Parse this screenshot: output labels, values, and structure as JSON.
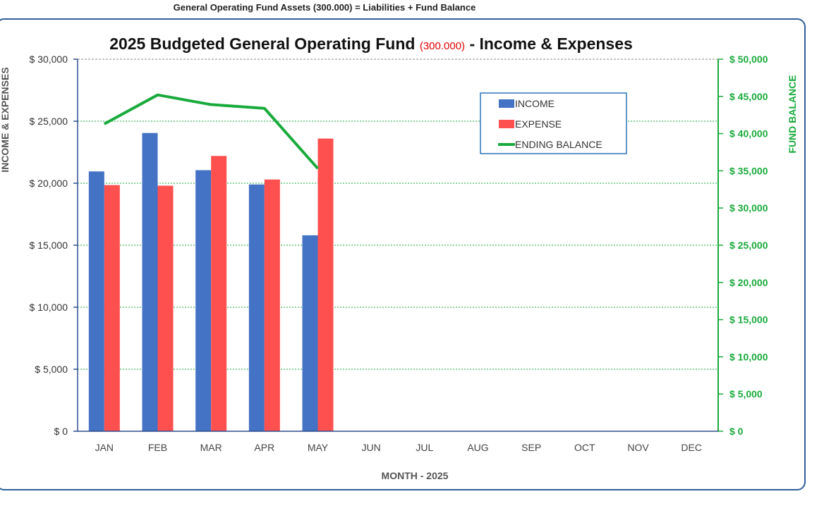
{
  "header": {
    "caption": "General Operating Fund Assets (300.000) = Liabilities + Fund Balance"
  },
  "chart_data": {
    "type": "bar",
    "title_main": "2025 Budgeted General Operating Fund",
    "title_code": "(300.000)",
    "title_suffix": "- Income & Expenses",
    "categories": [
      "JAN",
      "FEB",
      "MAR",
      "APR",
      "MAY",
      "JUN",
      "JUL",
      "AUG",
      "SEP",
      "OCT",
      "NOV",
      "DEC"
    ],
    "xlabel": "MONTH  -  2025",
    "ylabel_left": "INCOME  &  EXPENSES",
    "ylabel_right": "FUND  BALANCE",
    "ylim_left": [
      0,
      30000
    ],
    "ylim_right": [
      0,
      50000
    ],
    "left_ticks": [
      {
        "value": 0,
        "label": "$ 0"
      },
      {
        "value": 5000,
        "label": "$ 5,000"
      },
      {
        "value": 10000,
        "label": "$ 10,000"
      },
      {
        "value": 15000,
        "label": "$ 15,000"
      },
      {
        "value": 20000,
        "label": "$ 20,000"
      },
      {
        "value": 25000,
        "label": "$ 25,000"
      },
      {
        "value": 30000,
        "label": "$ 30,000"
      }
    ],
    "right_ticks": [
      {
        "value": 0,
        "label": "$ 0"
      },
      {
        "value": 5000,
        "label": "$ 5,000"
      },
      {
        "value": 10000,
        "label": "$ 10,000"
      },
      {
        "value": 15000,
        "label": "$ 15,000"
      },
      {
        "value": 20000,
        "label": "$ 20,000"
      },
      {
        "value": 25000,
        "label": "$ 25,000"
      },
      {
        "value": 30000,
        "label": "$ 30,000"
      },
      {
        "value": 35000,
        "label": "$ 35,000"
      },
      {
        "value": 40000,
        "label": "$ 40,000"
      },
      {
        "value": 45000,
        "label": "$ 45,000"
      },
      {
        "value": 50000,
        "label": "$ 50,000"
      }
    ],
    "series": [
      {
        "name": "INCOME",
        "kind": "bar",
        "axis": "left",
        "color": "#4472c4",
        "values": [
          20950,
          24050,
          21050,
          19900,
          15800,
          null,
          null,
          null,
          null,
          null,
          null,
          null
        ]
      },
      {
        "name": "EXPENSE",
        "kind": "bar",
        "axis": "left",
        "color": "#ff5050",
        "values": [
          19850,
          19800,
          22200,
          20300,
          23600,
          null,
          null,
          null,
          null,
          null,
          null,
          null
        ]
      },
      {
        "name": "ENDING  BALANCE",
        "kind": "line",
        "axis": "right",
        "color": "#1aaa3c",
        "values": [
          41300,
          45200,
          43900,
          43400,
          35300,
          null,
          null,
          null,
          null,
          null,
          null,
          null
        ]
      }
    ],
    "gridlines": "dotted horizontal, green",
    "legend_position": "top-right inside plot"
  }
}
